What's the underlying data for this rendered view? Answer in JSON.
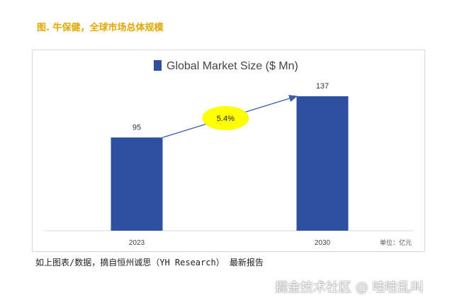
{
  "figure_title": "图. 牛保健，全球市场总体规模",
  "caption": "如上图表/数据，摘自恒州诚思（YH Research） 最新报告",
  "watermark": "掘金技术社区 @ 哇哇乱叫",
  "colors": {
    "bar": "#2f4fa0",
    "title_gold": "#e0a800",
    "cagr_bubble": "#ffff00",
    "arrow": "#3a5fa8"
  },
  "chart_data": {
    "type": "bar",
    "title": "",
    "legend": "Global Market Size ($ Mn)",
    "legend_position": "top-center",
    "categories": [
      "2023",
      "2030"
    ],
    "values": [
      95,
      137
    ],
    "ylim": [
      0,
      150
    ],
    "xlabel": "",
    "ylabel": "",
    "unit_note": "单位：亿元",
    "annotation": {
      "text": "5.4%",
      "meaning": "growth from 2023 to 2030"
    },
    "grid": false
  }
}
